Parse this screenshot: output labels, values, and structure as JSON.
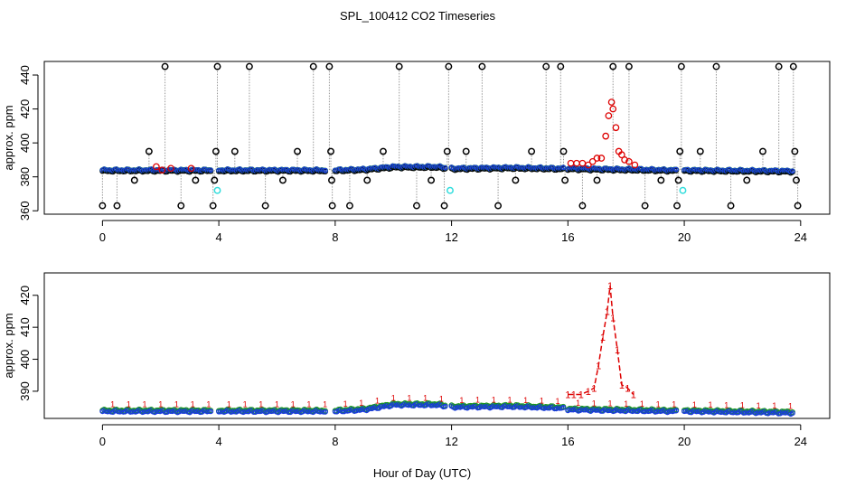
{
  "title": "SPL_100412  CO2 Timeseries",
  "xlabel": "Hour of Day (UTC)",
  "colors": {
    "black": "#000000",
    "red": "#dd0000",
    "blue": "#1a3adf",
    "green": "#1a9a1a",
    "cyan": "#33dddd",
    "gray": "#999999"
  },
  "chart_data": [
    {
      "type": "scatter",
      "panel": "top",
      "ylabel": "approx. ppm",
      "xlim": [
        -2,
        25
      ],
      "ylim": [
        358,
        448
      ],
      "xticks": [
        0,
        4,
        8,
        12,
        16,
        20,
        24
      ],
      "yticks": [
        360,
        380,
        400,
        420,
        440
      ],
      "baseline": {
        "description": "dense continuous series (blue) around baseline",
        "segments": [
          [
            0.0,
            3.75
          ],
          [
            4.0,
            7.7
          ],
          [
            8.0,
            11.8
          ],
          [
            12.0,
            15.85
          ],
          [
            16.0,
            19.75
          ],
          [
            20.0,
            23.75
          ]
        ],
        "knots": [
          [
            0,
            384
          ],
          [
            8,
            384
          ],
          [
            9,
            384.5
          ],
          [
            10,
            386
          ],
          [
            11.5,
            386
          ],
          [
            12,
            385
          ],
          [
            14,
            385.5
          ],
          [
            15.8,
            385
          ],
          [
            16,
            385
          ],
          [
            19.7,
            384
          ],
          [
            20,
            384
          ],
          [
            23.75,
            383.5
          ]
        ]
      },
      "high_points": {
        "x": [
          0.0,
          0.5,
          1.1,
          1.6,
          2.15,
          2.7,
          3.2,
          3.8,
          3.85,
          3.9,
          3.95,
          4.55,
          5.05,
          5.6,
          6.2,
          6.7,
          7.25,
          7.8,
          7.85,
          7.88,
          7.9,
          8.5,
          9.1,
          9.65,
          10.2,
          10.8,
          11.3,
          11.75,
          11.85,
          11.9,
          12.5,
          13.05,
          13.6,
          14.2,
          14.75,
          15.25,
          15.75,
          15.85,
          15.9,
          16.5,
          17.0,
          17.55,
          18.1,
          18.65,
          19.2,
          19.75,
          19.8,
          19.85,
          19.9,
          20.55,
          21.1,
          21.6,
          22.15,
          22.7,
          23.25,
          23.75,
          23.8,
          23.85,
          23.9
        ],
        "y": [
          363,
          363,
          378,
          395,
          445,
          363,
          378,
          363,
          378,
          395,
          445,
          395,
          445,
          363,
          378,
          395,
          445,
          445,
          395,
          378,
          363,
          363,
          378,
          395,
          445,
          363,
          378,
          363,
          395,
          445,
          395,
          445,
          363,
          378,
          395,
          445,
          445,
          395,
          378,
          363,
          378,
          445,
          445,
          363,
          378,
          363,
          378,
          395,
          445,
          395,
          445,
          363,
          378,
          395,
          445,
          445,
          395,
          378,
          363
        ]
      },
      "red_points": {
        "x": [
          1.85,
          2.05,
          2.35,
          3.05,
          16.1,
          16.3,
          16.5,
          16.7,
          16.85,
          17.0,
          17.15,
          17.3,
          17.4,
          17.5,
          17.55,
          17.65,
          17.75,
          17.85,
          17.95,
          18.1,
          18.3
        ],
        "y": [
          386,
          384,
          385,
          385,
          388,
          388,
          388,
          387,
          389,
          391,
          391,
          404,
          416,
          424,
          420,
          409,
          395,
          393,
          390,
          389,
          387
        ]
      },
      "cyan_points": {
        "x": [
          3.95,
          11.95,
          19.95
        ],
        "y": [
          372,
          372,
          372
        ]
      }
    },
    {
      "type": "line",
      "panel": "bottom",
      "ylabel": "approx. ppm",
      "xlim": [
        -2,
        25
      ],
      "ylim": [
        381.5,
        427
      ],
      "xticks": [
        0,
        4,
        8,
        12,
        16,
        20,
        24
      ],
      "yticks": [
        390,
        400,
        410,
        420
      ],
      "point_label": "1",
      "series": [
        {
          "name": "series 1 (red, plotted as '1')",
          "color": "red",
          "x": [
            16.0,
            16.2,
            16.45,
            16.7,
            16.9,
            17.05,
            17.2,
            17.35,
            17.45,
            17.55,
            17.7,
            17.85,
            18.05,
            18.25
          ],
          "y": [
            389,
            389,
            389,
            390,
            391,
            398,
            407,
            415,
            423,
            413,
            403,
            392,
            391,
            389
          ]
        }
      ],
      "baseline_segments": [
        [
          0.0,
          3.75
        ],
        [
          4.0,
          7.7
        ],
        [
          8.0,
          11.8
        ],
        [
          12.0,
          15.85
        ],
        [
          16.0,
          19.75
        ],
        [
          20.0,
          23.75
        ]
      ],
      "baseline_knots": [
        [
          0,
          384
        ],
        [
          8,
          384
        ],
        [
          9,
          384.5
        ],
        [
          10,
          386
        ],
        [
          11.5,
          386
        ],
        [
          12,
          385.3
        ],
        [
          14,
          385.5
        ],
        [
          15.8,
          385
        ],
        [
          16,
          384.5
        ],
        [
          19.7,
          384
        ],
        [
          20,
          384
        ],
        [
          23.75,
          383.5
        ]
      ]
    }
  ]
}
